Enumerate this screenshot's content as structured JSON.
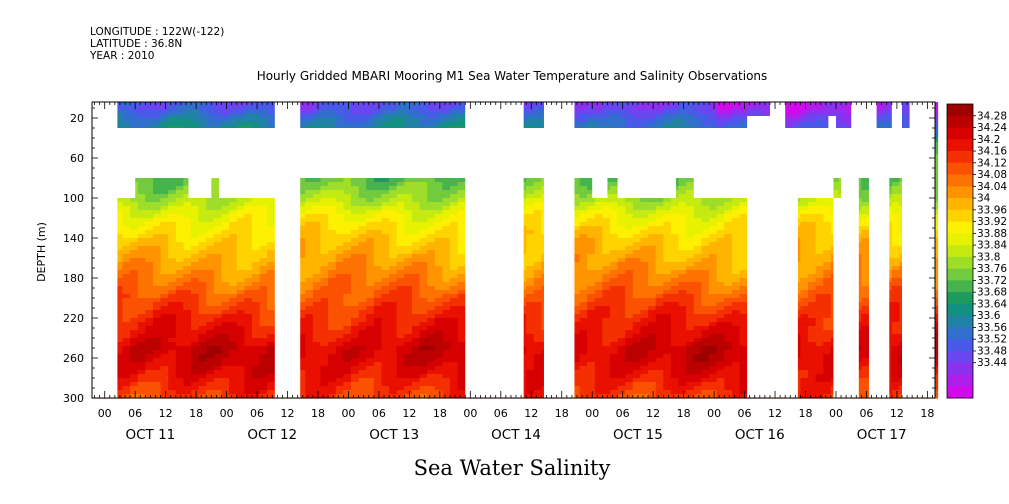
{
  "header": {
    "longitude": "LONGITUDE : 122W(-122)",
    "latitude": "LATITUDE : 36.8N",
    "year": "YEAR : 2010"
  },
  "chart_data": {
    "type": "heatmap",
    "title": "Hourly Gridded MBARI Mooring M1 Sea Water Temperature and Salinity Observations",
    "bottom_title": "Sea Water Salinity",
    "ylabel": "DEPTH (m)",
    "ylim": [
      300,
      4
    ],
    "y_ticks": [
      20,
      60,
      100,
      140,
      180,
      220,
      260,
      300
    ],
    "x_hour_ticks": [
      "00",
      "06",
      "12",
      "18",
      "00",
      "06",
      "12",
      "18",
      "00",
      "06",
      "12",
      "18",
      "00",
      "06",
      "12",
      "18",
      "00",
      "06",
      "12",
      "18",
      "00",
      "06",
      "12",
      "18",
      "00",
      "06",
      "12",
      "18"
    ],
    "x_day_labels": [
      "OCT 11",
      "OCT 12",
      "OCT 13",
      "OCT 14",
      "OCT 15",
      "OCT 16",
      "OCT 17"
    ],
    "x_range_hours": [
      -2.5,
      163.5
    ],
    "colorbar": {
      "labels": [
        "34.28",
        "34.24",
        "34.2",
        "34.16",
        "34.12",
        "34.08",
        "34.04",
        "34",
        "33.96",
        "33.92",
        "33.88",
        "33.84",
        "33.8",
        "33.76",
        "33.72",
        "33.68",
        "33.64",
        "33.6",
        "33.56",
        "33.52",
        "33.48",
        "33.44"
      ],
      "colors": [
        "#9e0000",
        "#bb0000",
        "#d60000",
        "#ea1000",
        "#f53000",
        "#fa5200",
        "#fd7200",
        "#ff9400",
        "#ffb400",
        "#ffd300",
        "#fdf000",
        "#e6f200",
        "#c4ea12",
        "#9ede2a",
        "#72cb3e",
        "#45b44c",
        "#1e9a5c",
        "#129080",
        "#2282a6",
        "#3070cc",
        "#4a5ae8",
        "#6a46f0",
        "#8c32ee",
        "#b01eec",
        "#d00aea"
      ],
      "range": [
        33.42,
        34.3
      ]
    },
    "salinity_profile": {
      "depths": [
        10,
        20,
        30,
        80,
        100,
        120,
        140,
        160,
        180,
        200,
        220,
        240,
        250,
        260,
        280,
        300
      ],
      "values": [
        33.56,
        33.62,
        33.66,
        33.78,
        33.84,
        33.92,
        33.97,
        34.01,
        34.05,
        34.1,
        34.15,
        34.19,
        34.22,
        34.22,
        34.18,
        34.13
      ]
    },
    "data_gaps_depth_10_30": [
      [
        -2.5,
        2.5
      ],
      [
        33.5,
        38.5
      ],
      [
        71,
        82.5
      ],
      [
        86.5,
        92.5
      ],
      [
        131,
        134
      ],
      [
        147,
        152
      ],
      [
        155,
        157
      ],
      [
        158.5,
        163.5
      ]
    ],
    "data_gaps_depth_18_30": [
      [
        -2.5,
        2.5
      ],
      [
        33.5,
        38.5
      ],
      [
        71,
        82.5
      ],
      [
        86.5,
        92.5
      ],
      [
        126.5,
        134
      ],
      [
        142.5,
        144
      ],
      [
        147,
        152
      ],
      [
        155,
        157
      ],
      [
        158.5,
        163.5
      ]
    ],
    "data_gaps_depth_30_80": [
      [
        -2.5,
        163.5
      ]
    ],
    "data_gaps_depth_80_100": [
      [
        -2.5,
        6
      ],
      [
        16.5,
        21
      ],
      [
        22.5,
        38.5
      ],
      [
        71,
        82.5
      ],
      [
        86.5,
        92.5
      ],
      [
        96,
        99
      ],
      [
        101,
        112.5
      ],
      [
        116,
        143.5
      ],
      [
        145,
        148.5
      ],
      [
        150.5,
        154.5
      ],
      [
        157,
        163.5
      ]
    ],
    "data_gaps_depth_100_300": [
      [
        -2.5,
        2.5
      ],
      [
        33.5,
        38.5
      ],
      [
        71,
        82.5
      ],
      [
        86.5,
        92.5
      ],
      [
        126.5,
        136.5
      ],
      [
        143.5,
        148.5
      ],
      [
        150.5,
        154.5
      ],
      [
        157,
        163.5
      ]
    ]
  }
}
